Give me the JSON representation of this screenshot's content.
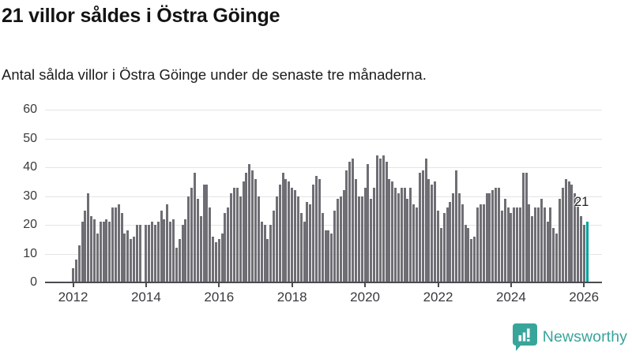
{
  "header": {
    "title": "21 villor såldes i Östra Göinge",
    "subtitle": "Antal sålda villor i Östra Göinge under de senaste tre månaderna."
  },
  "chart_data": {
    "type": "bar",
    "title": "21 villor såldes i Östra Göinge",
    "subtitle": "Antal sålda villor i Östra Göinge under de senaste tre månaderna.",
    "x_unit": "month",
    "x_start": "2012-01",
    "x_end": "2026-02",
    "values": [
      5,
      8,
      13,
      21,
      25,
      31,
      23,
      22,
      17,
      21,
      21,
      22,
      21,
      26,
      26,
      27,
      24,
      17,
      18,
      15,
      16,
      20,
      20,
      0,
      20,
      20,
      21,
      20,
      21,
      25,
      22,
      27,
      21,
      22,
      12,
      15,
      20,
      22,
      30,
      33,
      38,
      29,
      23,
      34,
      34,
      26,
      16,
      14,
      15,
      17,
      24,
      26,
      31,
      33,
      33,
      30,
      35,
      38,
      41,
      39,
      36,
      30,
      21,
      20,
      15,
      20,
      25,
      30,
      34,
      38,
      36,
      35,
      33,
      32,
      30,
      24,
      21,
      28,
      27,
      34,
      37,
      36,
      24,
      18,
      18,
      17,
      25,
      29,
      30,
      32,
      39,
      42,
      43,
      36,
      30,
      30,
      33,
      41,
      29,
      33,
      44,
      43,
      44,
      42,
      36,
      35,
      33,
      31,
      33,
      33,
      29,
      33,
      27,
      26,
      38,
      39,
      43,
      36,
      34,
      35,
      25,
      19,
      24,
      26,
      28,
      31,
      39,
      31,
      27,
      20,
      19,
      15,
      16,
      26,
      27,
      27,
      31,
      31,
      32,
      33,
      33,
      25,
      29,
      26,
      24,
      26,
      26,
      26,
      38,
      38,
      27,
      23,
      26,
      26,
      29,
      26,
      21,
      26,
      19,
      17,
      29,
      33,
      36,
      35,
      34,
      31,
      29,
      23,
      20,
      21
    ],
    "highlight": {
      "index_from_end": 1,
      "value": 21,
      "color": "#00a29e"
    },
    "annotation": {
      "label": "21"
    },
    "bar_color": "#6e6e74",
    "ylim": [
      0,
      60
    ],
    "y_ticks": [
      0,
      10,
      20,
      30,
      40,
      50,
      60
    ],
    "x_tick_labels": [
      "2012",
      "2014",
      "2016",
      "2018",
      "2020",
      "2022",
      "2024",
      "2026"
    ],
    "grid": "horizontal",
    "legend": "none",
    "xlabel": "",
    "ylabel": ""
  },
  "branding": {
    "name": "Newsworthy",
    "color": "#38a59b",
    "icon": "bar-chart-speech-bubble"
  },
  "colors": {
    "bar": "#6e6e74",
    "highlight": "#00a29e",
    "axis": "#4b4b50",
    "gridline": "#e4e4e6",
    "text": "#1c1c1c"
  }
}
